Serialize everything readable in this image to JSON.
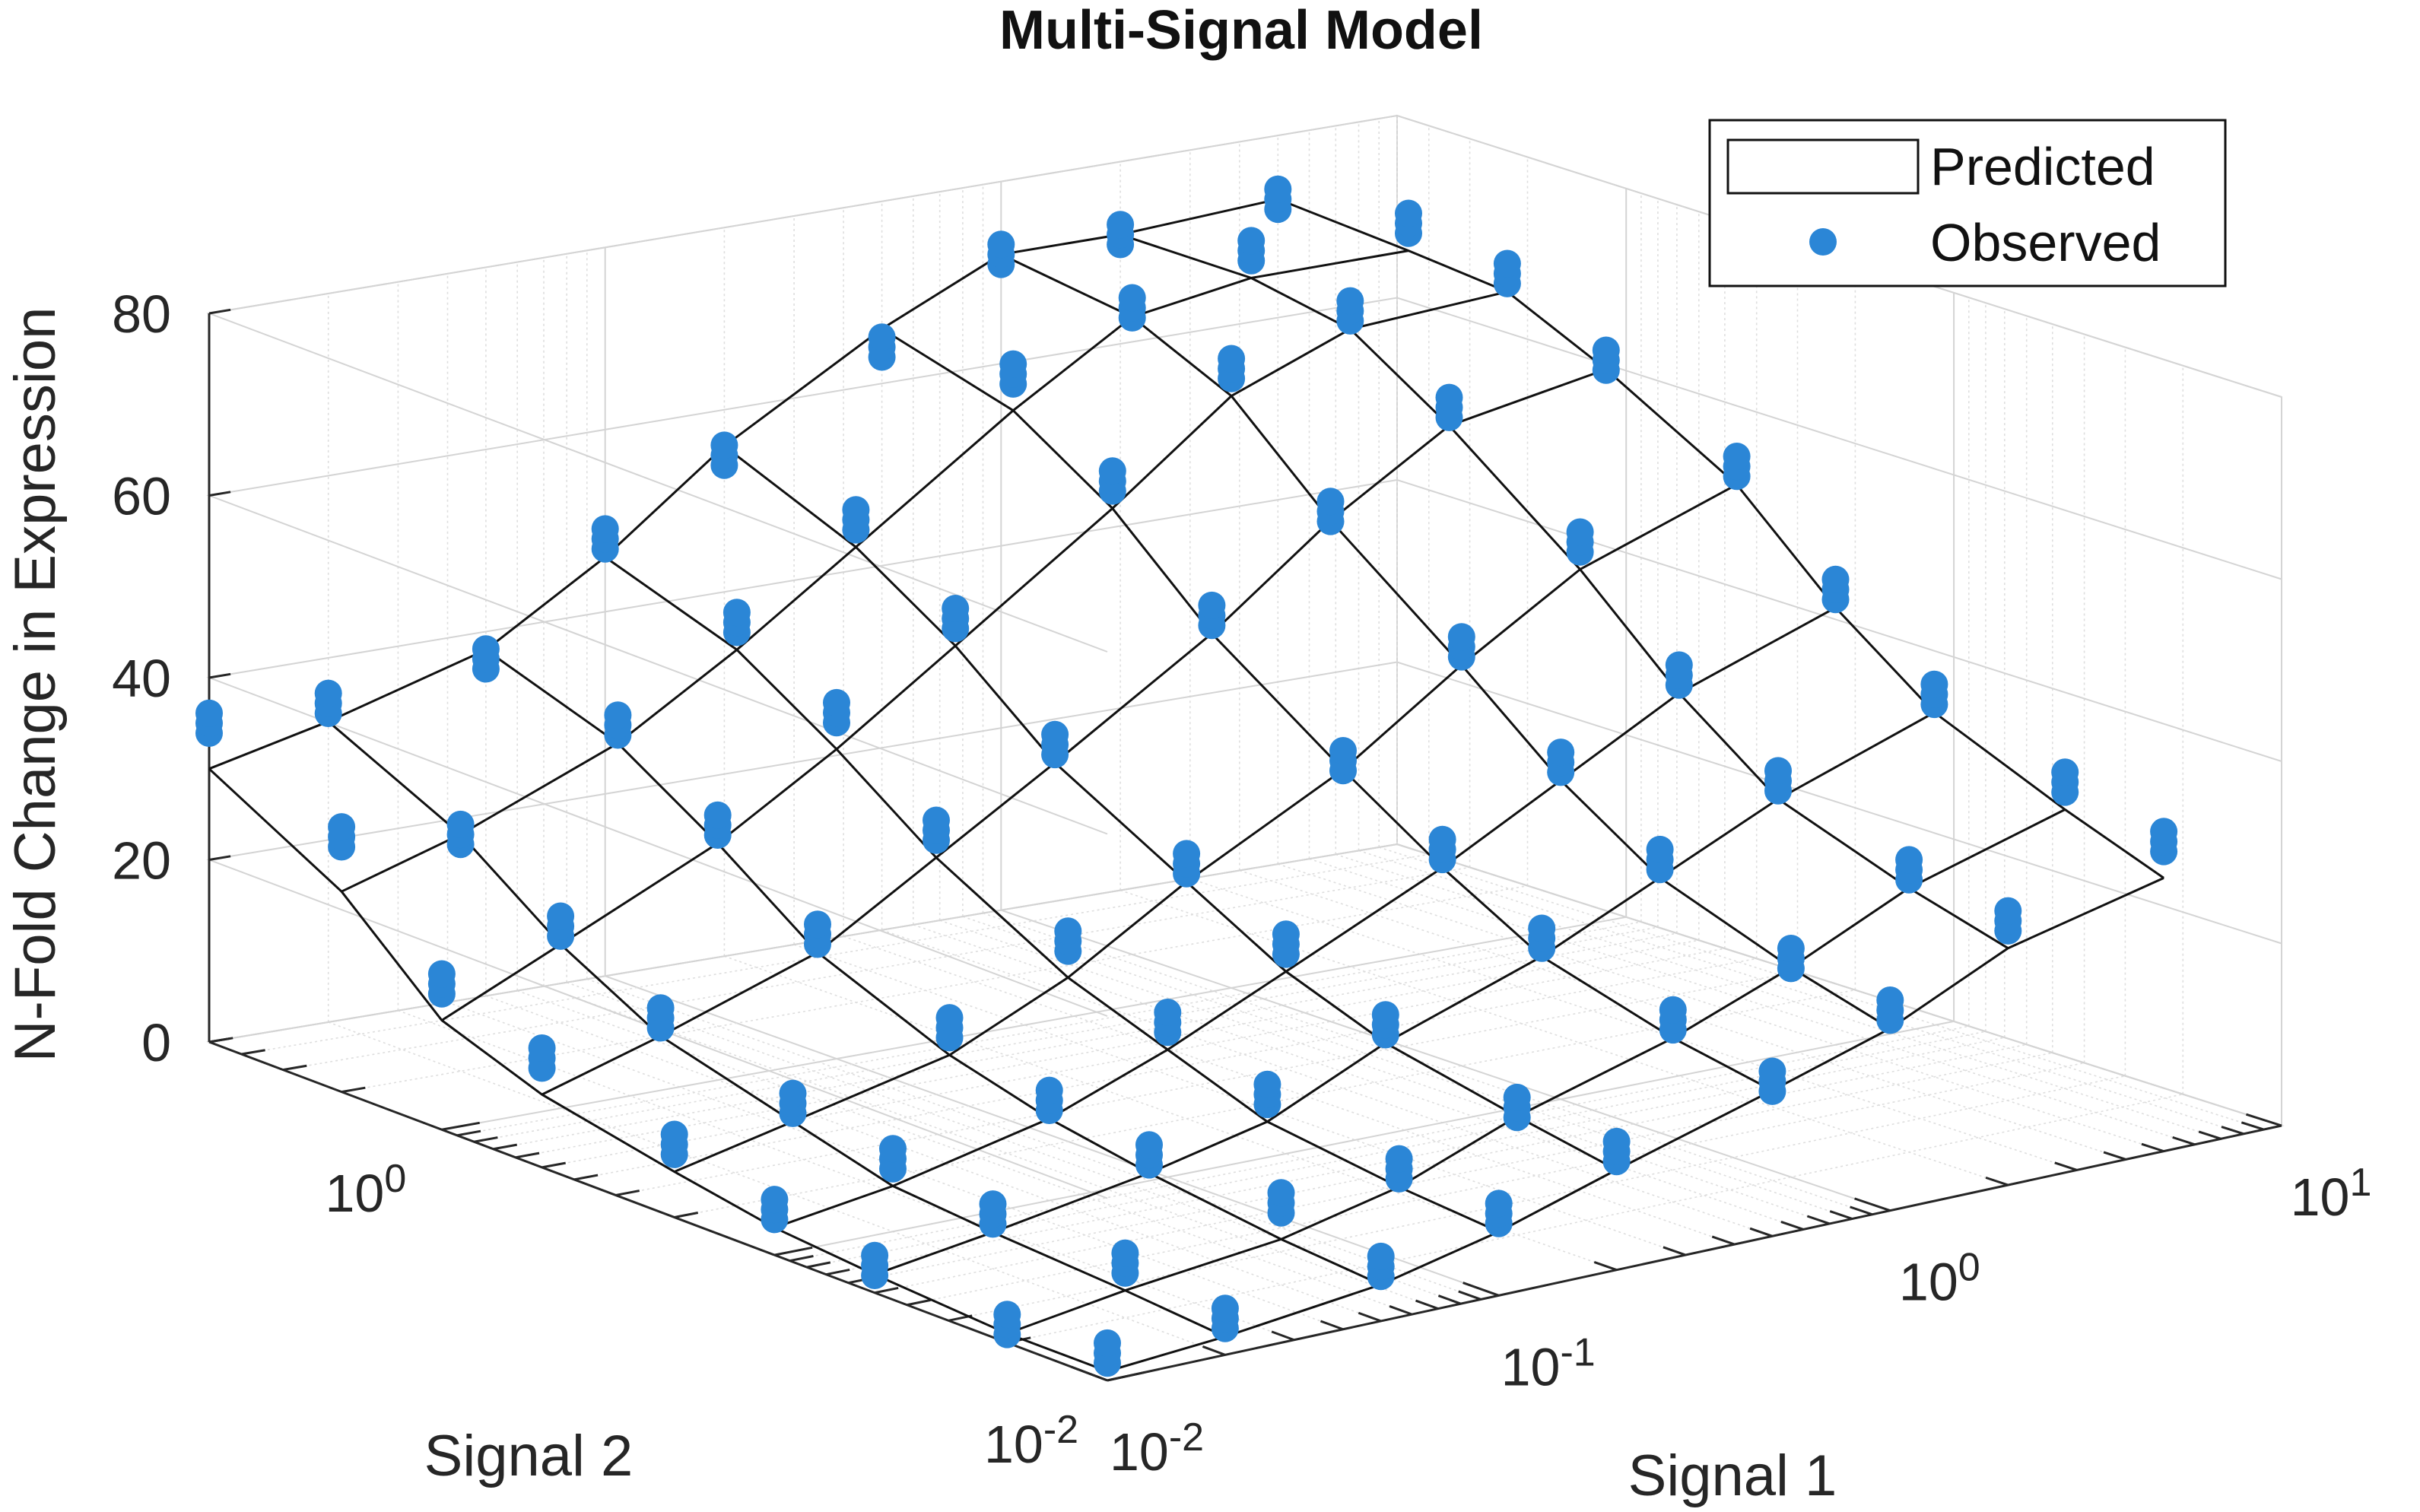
{
  "chart_data": {
    "type": "surface-scatter-3d",
    "title": "Multi-Signal Model",
    "xlabel": "Signal 1",
    "ylabel": "Signal 2",
    "zlabel": "N-Fold Change in Expression",
    "x_scale": "log",
    "y_scale": "log",
    "xlim": [
      0.01,
      10
    ],
    "ylim": [
      0.01,
      5
    ],
    "zlim": [
      0,
      80
    ],
    "x_ticks": [
      "10-2",
      "10-1",
      "100",
      "101"
    ],
    "y_ticks": [
      "10-2",
      "100"
    ],
    "z_ticks": [
      "0",
      "20",
      "40",
      "60",
      "80"
    ],
    "grid": true,
    "legend_position": "top-right",
    "signal1_levels": [
      0.01,
      0.02,
      0.05,
      0.1,
      0.2,
      0.5,
      1,
      2,
      5
    ],
    "signal2_levels": [
      0.01,
      0.02,
      0.05,
      0.1,
      0.2,
      0.5,
      1,
      2,
      5
    ],
    "series": [
      {
        "name": "Predicted",
        "style": "mesh",
        "color": "#111111",
        "z": [
          [
            1,
            1,
            2,
            3,
            5,
            8,
            12,
            22,
            30
          ],
          [
            2,
            3,
            4,
            5,
            8,
            12,
            18,
            26,
            33
          ],
          [
            4,
            5,
            7,
            9,
            12,
            18,
            26,
            33,
            38
          ],
          [
            7,
            8,
            10,
            14,
            18,
            26,
            34,
            41,
            46
          ],
          [
            11,
            13,
            16,
            20,
            26,
            34,
            43,
            50,
            56
          ],
          [
            16,
            18,
            22,
            28,
            35,
            45,
            55,
            62,
            66
          ],
          [
            20,
            23,
            28,
            35,
            44,
            55,
            65,
            70,
            72
          ],
          [
            26,
            29,
            34,
            42,
            52,
            63,
            70,
            72,
            72
          ],
          [
            30,
            34,
            40,
            48,
            58,
            66,
            71,
            72,
            73
          ]
        ]
      },
      {
        "name": "Observed",
        "style": "marker",
        "color": "#2b86d6",
        "replicates": 3,
        "z": [
          [
            3,
            2,
            3,
            5,
            8,
            12,
            16,
            28,
            35
          ],
          [
            4,
            6,
            6,
            8,
            10,
            14,
            20,
            26,
            35
          ],
          [
            6,
            9,
            9,
            11,
            15,
            20,
            28,
            35,
            37
          ],
          [
            9,
            10,
            13,
            17,
            22,
            29,
            38,
            44,
            48
          ],
          [
            13,
            14,
            18,
            23,
            28,
            36,
            46,
            53,
            55
          ],
          [
            17,
            20,
            24,
            30,
            36,
            47,
            58,
            66,
            64
          ],
          [
            22,
            24,
            30,
            37,
            46,
            56,
            68,
            71,
            72
          ],
          [
            29,
            31,
            36,
            44,
            55,
            65,
            72,
            75,
            72
          ],
          [
            34,
            37,
            42,
            50,
            60,
            67,
            73,
            75,
            73
          ]
        ]
      }
    ]
  }
}
